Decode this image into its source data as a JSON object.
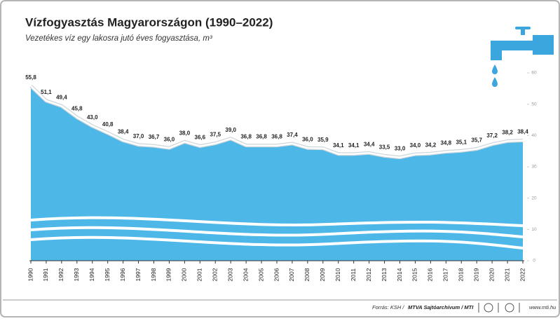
{
  "chart_data": {
    "type": "area",
    "title": "Vízfogyasztás Magyarországon (1990–2022)",
    "subtitle": "Vezetékes víz egy lakosra jutó éves fogyasztása, m³",
    "categories": [
      "1990",
      "1991",
      "1992",
      "1993",
      "1994",
      "1995",
      "1996",
      "1997",
      "1998",
      "1999",
      "2000",
      "2001",
      "2002",
      "2003",
      "2004",
      "2005",
      "2006",
      "2007",
      "2008",
      "2009",
      "2010",
      "2011",
      "2012",
      "2013",
      "2014",
      "2015",
      "2016",
      "2017",
      "2018",
      "2019",
      "2020",
      "2021",
      "2022"
    ],
    "values": [
      55.8,
      51.1,
      49.4,
      45.8,
      43.0,
      40.8,
      38.4,
      37.0,
      36.7,
      36.0,
      38.0,
      36.6,
      37.5,
      39.0,
      36.8,
      36.8,
      36.8,
      37.4,
      36.0,
      35.9,
      34.1,
      34.1,
      34.4,
      33.5,
      33.0,
      34.0,
      34.2,
      34.8,
      35.1,
      35.7,
      37.2,
      38.2,
      38.4
    ],
    "value_labels": [
      "55,8",
      "51,1",
      "49,4",
      "45,8",
      "43,0",
      "40,8",
      "38,4",
      "37,0",
      "36,7",
      "36,0",
      "38,0",
      "36,6",
      "37,5",
      "39,0",
      "36,8",
      "36,8",
      "36,8",
      "37,4",
      "36,0",
      "35,9",
      "34,1",
      "34,1",
      "34,4",
      "33,5",
      "33,0",
      "34,0",
      "34,2",
      "34,8",
      "35,1",
      "35,7",
      "37,2",
      "38,2",
      "38,4"
    ],
    "color": "#4db8e8",
    "ylim": [
      0,
      60
    ],
    "yticks": [
      0,
      10,
      20,
      30,
      40,
      50,
      60
    ],
    "source": "Forrás: KSH /",
    "credit": "MTVA Sajtóarchívum / MTI",
    "url": "www.mti.hu"
  }
}
